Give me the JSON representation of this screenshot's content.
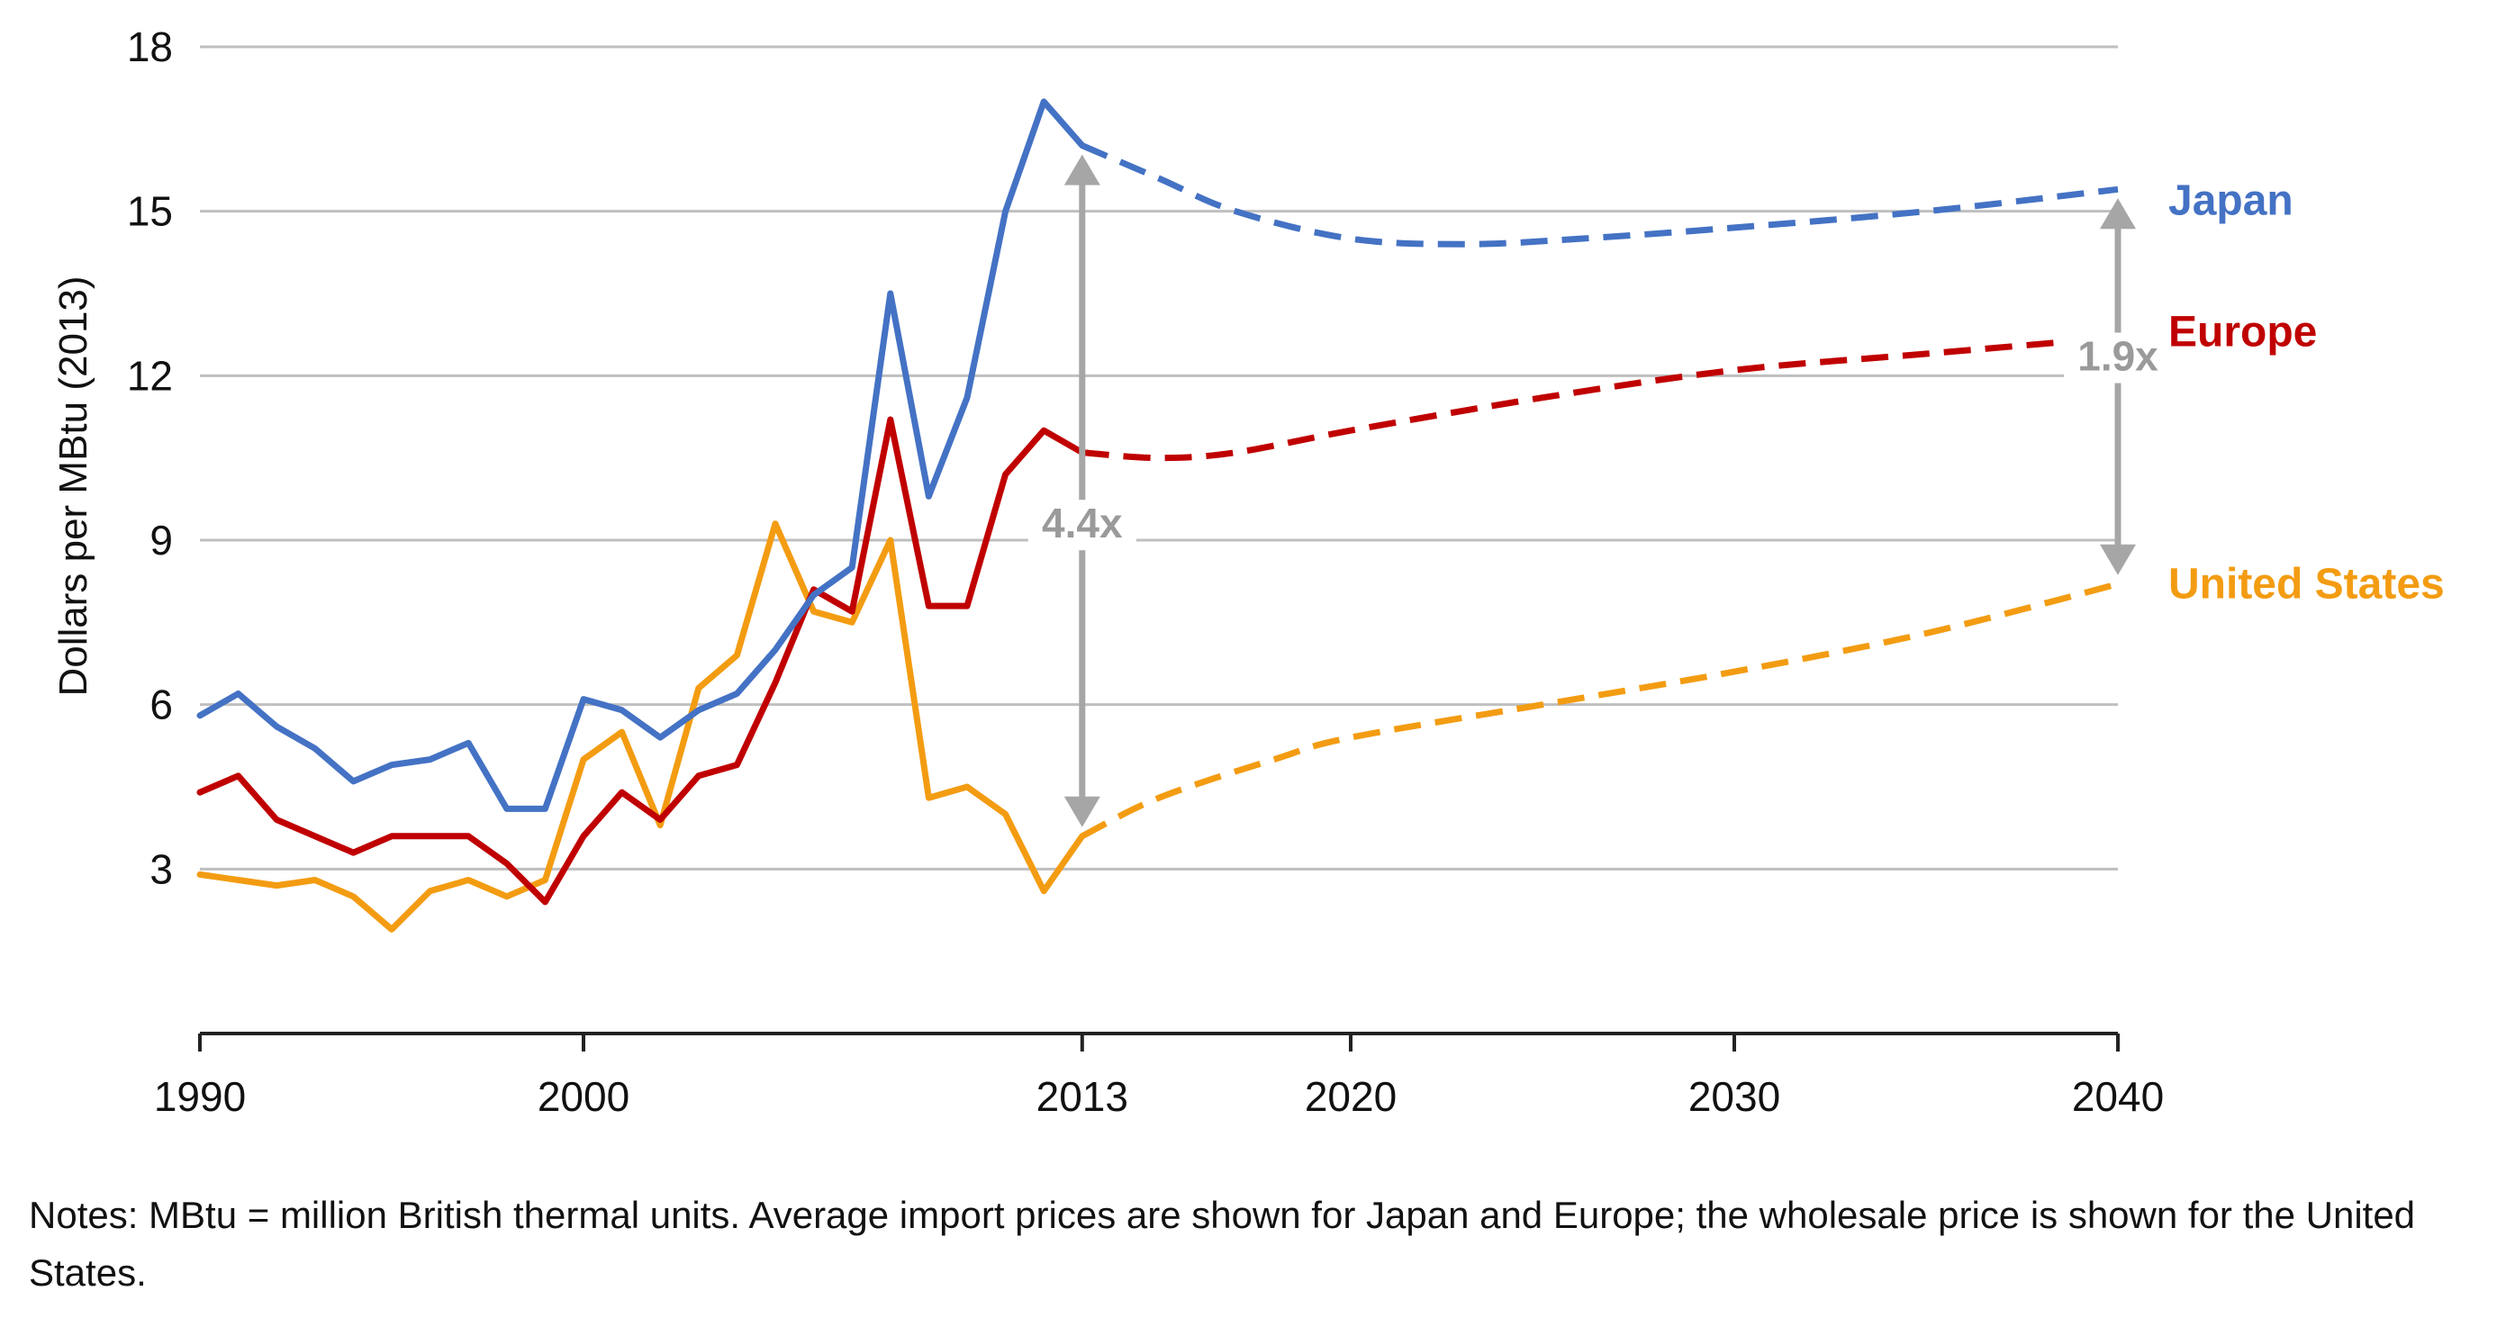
{
  "chart_data": {
    "type": "line",
    "title": "",
    "xlabel": "",
    "ylabel": "Dollars per MBtu (2013)",
    "xlim": [
      1990,
      2040
    ],
    "ylim": [
      0,
      18
    ],
    "grid": true,
    "x_ticks": [
      {
        "value": 1990,
        "label": "1990"
      },
      {
        "value": 2000,
        "label": "2000"
      },
      {
        "value": 2013,
        "label": "2013"
      },
      {
        "value": 2020,
        "label": "2020"
      },
      {
        "value": 2030,
        "label": "2030"
      },
      {
        "value": 2040,
        "label": "2040"
      }
    ],
    "y_ticks": [
      {
        "value": 3,
        "label": "3"
      },
      {
        "value": 6,
        "label": "6"
      },
      {
        "value": 9,
        "label": "9"
      },
      {
        "value": 12,
        "label": "12"
      },
      {
        "value": 15,
        "label": "15"
      },
      {
        "value": 18,
        "label": "18"
      }
    ],
    "series": [
      {
        "name": "Japan",
        "color": "#4472C4",
        "historical": [
          [
            1990,
            5.8
          ],
          [
            1991,
            6.2
          ],
          [
            1992,
            5.6
          ],
          [
            1993,
            5.2
          ],
          [
            1994,
            4.6
          ],
          [
            1995,
            4.9
          ],
          [
            1996,
            5.0
          ],
          [
            1997,
            5.3
          ],
          [
            1998,
            4.1
          ],
          [
            1999,
            4.1
          ],
          [
            2000,
            6.1
          ],
          [
            2001,
            5.9
          ],
          [
            2002,
            5.4
          ],
          [
            2003,
            5.9
          ],
          [
            2004,
            6.2
          ],
          [
            2005,
            7.0
          ],
          [
            2006,
            8.0
          ],
          [
            2007,
            8.5
          ],
          [
            2008,
            13.5
          ],
          [
            2009,
            9.8
          ],
          [
            2010,
            11.6
          ],
          [
            2011,
            15.0
          ],
          [
            2012,
            17.0
          ],
          [
            2013,
            16.2
          ]
        ],
        "projection": [
          [
            2013,
            16.2
          ],
          [
            2015,
            15.6
          ],
          [
            2017,
            15.0
          ],
          [
            2020,
            14.5
          ],
          [
            2023,
            14.4
          ],
          [
            2026,
            14.5
          ],
          [
            2030,
            14.7
          ],
          [
            2035,
            15.0
          ],
          [
            2040,
            15.4
          ]
        ]
      },
      {
        "name": "Europe",
        "color": "#C00000",
        "historical": [
          [
            1990,
            4.4
          ],
          [
            1991,
            4.7
          ],
          [
            1992,
            3.9
          ],
          [
            1993,
            3.6
          ],
          [
            1994,
            3.3
          ],
          [
            1995,
            3.6
          ],
          [
            1996,
            3.6
          ],
          [
            1997,
            3.6
          ],
          [
            1998,
            3.1
          ],
          [
            1999,
            2.4
          ],
          [
            2000,
            3.6
          ],
          [
            2001,
            4.4
          ],
          [
            2002,
            3.9
          ],
          [
            2003,
            4.7
          ],
          [
            2004,
            4.9
          ],
          [
            2005,
            6.4
          ],
          [
            2006,
            8.1
          ],
          [
            2007,
            7.7
          ],
          [
            2008,
            11.2
          ],
          [
            2009,
            7.8
          ],
          [
            2010,
            7.8
          ],
          [
            2011,
            10.2
          ],
          [
            2012,
            11.0
          ],
          [
            2013,
            10.6
          ]
        ],
        "projection": [
          [
            2013,
            10.6
          ],
          [
            2015,
            10.5
          ],
          [
            2017,
            10.6
          ],
          [
            2020,
            11.0
          ],
          [
            2025,
            11.6
          ],
          [
            2030,
            12.1
          ],
          [
            2035,
            12.4
          ],
          [
            2040,
            12.7
          ]
        ]
      },
      {
        "name": "United States",
        "color": "#F39C12",
        "historical": [
          [
            1990,
            2.9
          ],
          [
            1991,
            2.8
          ],
          [
            1992,
            2.7
          ],
          [
            1993,
            2.8
          ],
          [
            1994,
            2.5
          ],
          [
            1995,
            1.9
          ],
          [
            1996,
            2.6
          ],
          [
            1997,
            2.8
          ],
          [
            1998,
            2.5
          ],
          [
            1999,
            2.8
          ],
          [
            2000,
            5.0
          ],
          [
            2001,
            5.5
          ],
          [
            2002,
            3.8
          ],
          [
            2003,
            6.3
          ],
          [
            2004,
            6.9
          ],
          [
            2005,
            9.3
          ],
          [
            2006,
            7.7
          ],
          [
            2007,
            7.5
          ],
          [
            2008,
            9.0
          ],
          [
            2009,
            4.3
          ],
          [
            2010,
            4.5
          ],
          [
            2011,
            4.0
          ],
          [
            2012,
            2.6
          ],
          [
            2013,
            3.6
          ]
        ],
        "projection": [
          [
            2013,
            3.6
          ],
          [
            2015,
            4.3
          ],
          [
            2018,
            5.0
          ],
          [
            2020,
            5.4
          ],
          [
            2025,
            6.0
          ],
          [
            2030,
            6.6
          ],
          [
            2035,
            7.3
          ],
          [
            2040,
            8.2
          ]
        ]
      }
    ],
    "annotations": [
      {
        "label": "4.4x",
        "x": 2013,
        "from": 3.6,
        "to": 16.2
      },
      {
        "label": "1.9x",
        "x": 2040,
        "from": 8.2,
        "to": 15.4
      }
    ],
    "colors": {
      "grid": "#BFBFBF",
      "arrow": "#A6A6A6",
      "axis": "#222222"
    }
  },
  "notes": "Notes: MBtu = million British thermal units. Average import prices are shown for Japan and Europe; the wholesale price is shown for the United States."
}
